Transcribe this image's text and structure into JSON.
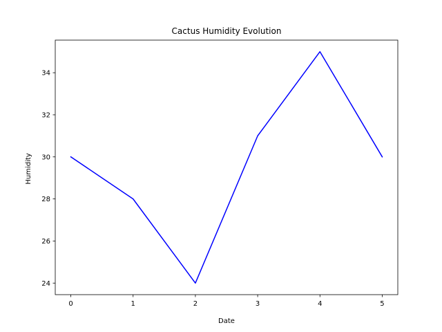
{
  "chart_data": {
    "type": "line",
    "title": "Cactus Humidity Evolution",
    "xlabel": "Date",
    "ylabel": "Humidity",
    "x": [
      0,
      1,
      2,
      3,
      4,
      5
    ],
    "series": [
      {
        "values": [
          30,
          28,
          24,
          31,
          35,
          30
        ],
        "color": "#0000ff"
      }
    ],
    "xticks": [
      0,
      1,
      2,
      3,
      4,
      5
    ],
    "yticks": [
      24,
      26,
      28,
      30,
      32,
      34
    ],
    "xlim": [
      -0.25,
      5.25
    ],
    "ylim": [
      23.45,
      35.55
    ],
    "grid": false,
    "legend": "none"
  }
}
